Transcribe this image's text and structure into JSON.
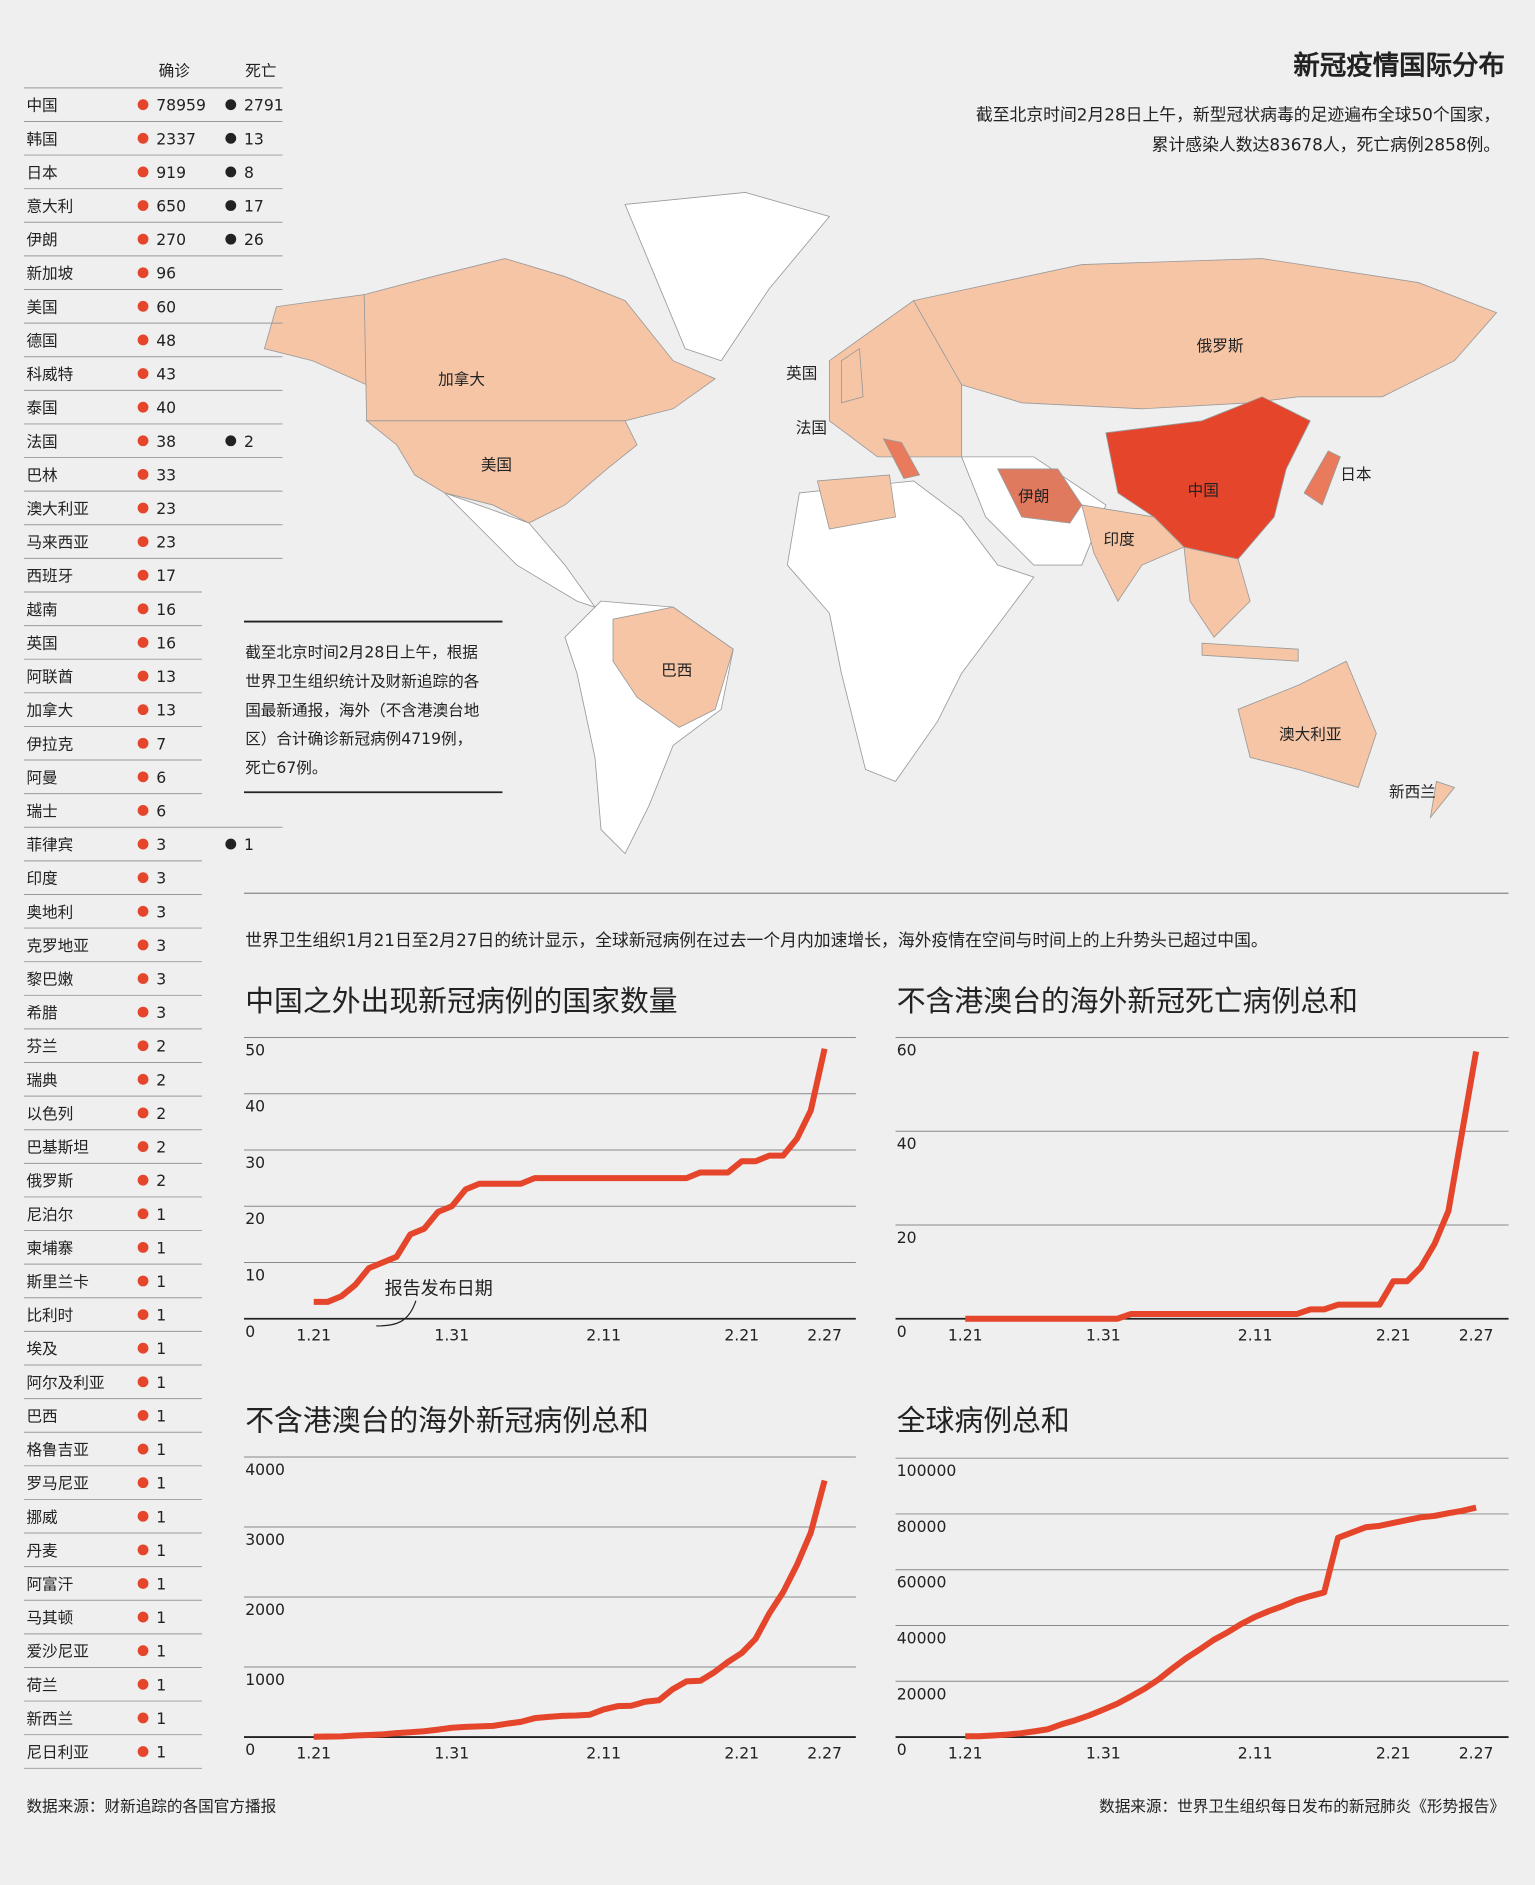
{
  "title": "新冠疫情国际分布",
  "subtitle": [
    "截至北京时间2月28日上午，新型冠状病毒的足迹遍布全球50个国家，",
    "累计感染人数达83678人，死亡病例2858例。"
  ],
  "table": {
    "header": [
      "确诊",
      "死亡"
    ],
    "rows": [
      [
        "中国",
        78959,
        2791
      ],
      [
        "韩国",
        2337,
        13
      ],
      [
        "日本",
        919,
        8
      ],
      [
        "意大利",
        650,
        17
      ],
      [
        "伊朗",
        270,
        26
      ],
      [
        "新加坡",
        96
      ],
      [
        "美国",
        60
      ],
      [
        "德国",
        48
      ],
      [
        "科威特",
        43
      ],
      [
        "泰国",
        40
      ],
      [
        "法国",
        38,
        2
      ],
      [
        "巴林",
        33
      ],
      [
        "澳大利亚",
        23
      ],
      [
        "马来西亚",
        23
      ],
      [
        "西班牙",
        17
      ],
      [
        "越南",
        16
      ],
      [
        "英国",
        16
      ],
      [
        "阿联酋",
        13
      ],
      [
        "加拿大",
        13
      ],
      [
        "伊拉克",
        7
      ],
      [
        "阿曼",
        6
      ],
      [
        "瑞士",
        6
      ],
      [
        "菲律宾",
        3,
        1
      ],
      [
        "印度",
        3
      ],
      [
        "奥地利",
        3
      ],
      [
        "克罗地亚",
        3
      ],
      [
        "黎巴嫩",
        3
      ],
      [
        "希腊",
        3
      ],
      [
        "芬兰",
        2
      ],
      [
        "瑞典",
        2
      ],
      [
        "以色列",
        2
      ],
      [
        "巴基斯坦",
        2
      ],
      [
        "俄罗斯",
        2
      ],
      [
        "尼泊尔",
        1
      ],
      [
        "柬埔寨",
        1
      ],
      [
        "斯里兰卡",
        1
      ],
      [
        "比利时",
        1
      ],
      [
        "埃及",
        1
      ],
      [
        "阿尔及利亚",
        1
      ],
      [
        "巴西",
        1
      ],
      [
        "格鲁吉亚",
        1
      ],
      [
        "罗马尼亚",
        1
      ],
      [
        "挪威",
        1
      ],
      [
        "丹麦",
        1
      ],
      [
        "阿富汗",
        1
      ],
      [
        "马其顿",
        1
      ],
      [
        "爱沙尼亚",
        1
      ],
      [
        "荷兰",
        1
      ],
      [
        "新西兰",
        1
      ],
      [
        "尼日利亚",
        1
      ]
    ]
  },
  "map": {
    "labels": [
      "加拿大",
      "美国",
      "巴西",
      "英国",
      "法国",
      "俄罗斯",
      "中国",
      "伊朗",
      "印度",
      "日本",
      "澳大利亚",
      "新西兰"
    ]
  },
  "note": [
    "截至北京时间2月28日上午，根据",
    "世界卫生组织统计及财新追踪的各",
    "国最新通报，海外（不含港澳台地",
    "区）合计确诊新冠病例4719例，",
    "死亡67例。"
  ],
  "intro": "世界卫生组织1月21日至2月27日的统计显示，全球新冠病例在过去一个月内加速增长，海外疫情在空间与时间上的上升势头已超过中国。",
  "chart_data": [
    {
      "type": "line",
      "title": "中国之外出现新冠病例的国家数量",
      "annotation": "报告发布日期",
      "color": "#e4452b",
      "grid": true,
      "categories": [
        "1.21",
        null,
        null,
        null,
        null,
        null,
        null,
        null,
        null,
        null,
        "1.31",
        null,
        null,
        null,
        null,
        null,
        null,
        null,
        null,
        null,
        null,
        "2.11",
        null,
        null,
        null,
        null,
        null,
        null,
        null,
        null,
        null,
        "2.21",
        null,
        null,
        null,
        null,
        null,
        "2.27"
      ],
      "values": [
        3,
        3,
        4,
        6,
        9,
        10,
        11,
        15,
        16,
        19,
        20,
        23,
        24,
        24,
        24,
        24,
        25,
        25,
        25,
        25,
        25,
        25,
        25,
        25,
        25,
        25,
        25,
        25,
        26,
        26,
        26,
        28,
        28,
        29,
        29,
        32,
        37,
        48
      ],
      "ylim": [
        0,
        50
      ],
      "yticks": [
        0,
        10,
        20,
        30,
        40,
        50
      ]
    },
    {
      "type": "line",
      "title": "不含港澳台的海外新冠死亡病例总和",
      "color": "#e4452b",
      "grid": true,
      "categories": [
        "1.21",
        null,
        null,
        null,
        null,
        null,
        null,
        null,
        null,
        null,
        "1.31",
        null,
        null,
        null,
        null,
        null,
        null,
        null,
        null,
        null,
        null,
        "2.11",
        null,
        null,
        null,
        null,
        null,
        null,
        null,
        null,
        null,
        "2.21",
        null,
        null,
        null,
        null,
        null,
        "2.27"
      ],
      "values": [
        0,
        0,
        0,
        0,
        0,
        0,
        0,
        0,
        0,
        0,
        0,
        0,
        1,
        1,
        1,
        1,
        1,
        1,
        1,
        1,
        1,
        1,
        1,
        1,
        1,
        2,
        2,
        3,
        3,
        3,
        3,
        8,
        8,
        11,
        16,
        23,
        40,
        57
      ],
      "ylim": [
        0,
        60
      ],
      "yticks": [
        0,
        20,
        40,
        60
      ]
    },
    {
      "type": "line",
      "title": "不含港澳台的海外新冠病例总和",
      "color": "#e4452b",
      "grid": true,
      "categories": [
        "1.21",
        null,
        null,
        null,
        null,
        null,
        null,
        null,
        null,
        null,
        "1.31",
        null,
        null,
        null,
        null,
        null,
        null,
        null,
        null,
        null,
        null,
        "2.11",
        null,
        null,
        null,
        null,
        null,
        null,
        null,
        null,
        null,
        "2.21",
        null,
        null,
        null,
        null,
        null,
        "2.27"
      ],
      "values": [
        4,
        7,
        10,
        23,
        29,
        37,
        56,
        68,
        82,
        106,
        132,
        146,
        153,
        159,
        191,
        216,
        270,
        288,
        302,
        307,
        319,
        395,
        441,
        447,
        505,
        526,
        683,
        794,
        804,
        924,
        1073,
        1200,
        1402,
        1769,
        2069,
        2459,
        2918,
        3664
      ],
      "ylim": [
        0,
        4000
      ],
      "yticks": [
        0,
        1000,
        2000,
        3000,
        4000
      ]
    },
    {
      "type": "line",
      "title": "全球病例总和",
      "color": "#e4452b",
      "grid": true,
      "categories": [
        "1.21",
        null,
        null,
        null,
        null,
        null,
        null,
        null,
        null,
        null,
        "1.31",
        null,
        null,
        null,
        null,
        null,
        null,
        null,
        null,
        null,
        null,
        "2.11",
        null,
        null,
        null,
        null,
        null,
        null,
        null,
        null,
        null,
        "2.21",
        null,
        null,
        null,
        null,
        null,
        "2.27"
      ],
      "values": [
        282,
        314,
        581,
        846,
        1320,
        2014,
        2798,
        4593,
        6065,
        7818,
        9826,
        11953,
        14557,
        17391,
        20630,
        24554,
        28276,
        31481,
        34886,
        37558,
        40554,
        43103,
        45171,
        46997,
        49053,
        50580,
        51857,
        71429,
        73332,
        75204,
        75748,
        76769,
        77794,
        78811,
        79331,
        80239,
        81109,
        82294
      ],
      "ylim": [
        0,
        100000
      ],
      "yticks": [
        0,
        20000,
        40000,
        60000,
        80000,
        100000
      ]
    }
  ],
  "sources": [
    "数据来源：财新追踪的各国官方播报",
    "数据来源：世界卫生组织每日发布的新冠肺炎《形势报告》"
  ]
}
